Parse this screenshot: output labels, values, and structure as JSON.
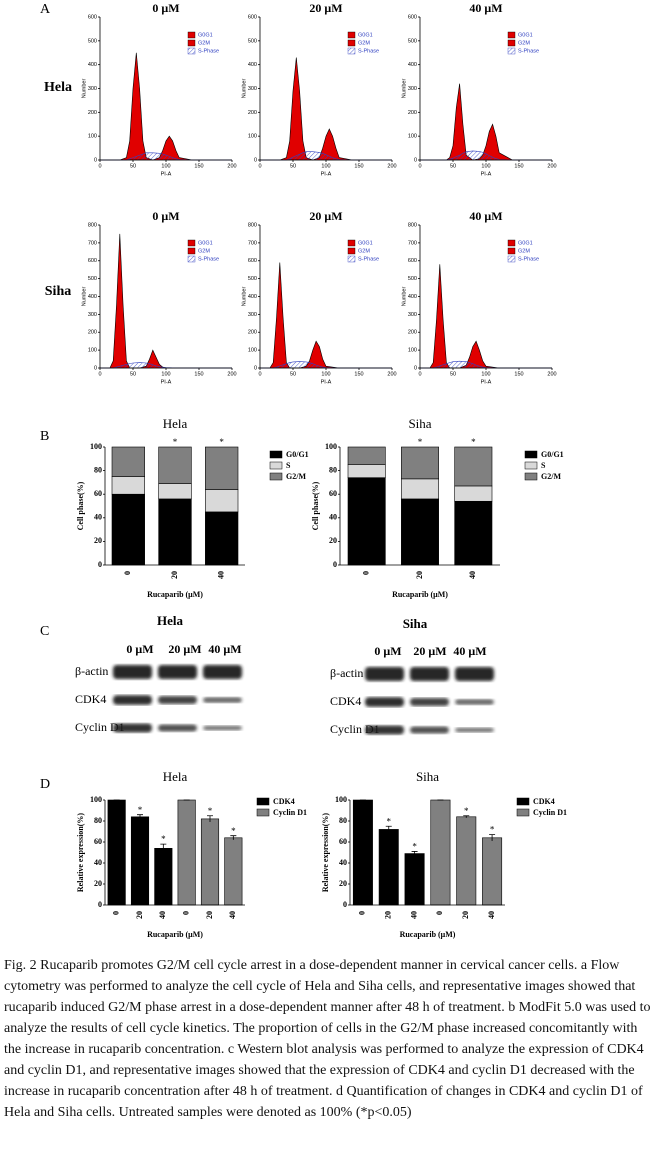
{
  "panels": [
    "A",
    "B",
    "C",
    "D"
  ],
  "panel_a_rows": [
    "Hela",
    "Siha"
  ],
  "chart_data": [
    {
      "type": "area",
      "title": "0 μM",
      "xlabel": "PI-A",
      "ylabel": "Number",
      "legend": "upper-right",
      "x": [
        0,
        30,
        40,
        45,
        50,
        55,
        60,
        65,
        70,
        80,
        90,
        95,
        100,
        105,
        110,
        115,
        120,
        140,
        170,
        200
      ],
      "xlim": [
        0,
        200
      ],
      "xticks": [
        0,
        50,
        100,
        150,
        200
      ],
      "ylim": [
        0,
        600
      ],
      "yticks": [
        0,
        100,
        200,
        300,
        400,
        500,
        600
      ],
      "series": [
        {
          "name": "G0G1",
          "color": "#e00000",
          "values": [
            0,
            0,
            10,
            80,
            300,
            450,
            300,
            80,
            10,
            0,
            0,
            0,
            0,
            0,
            0,
            0,
            0,
            0,
            0,
            0
          ]
        },
        {
          "name": "G2M",
          "color": "#e00000",
          "values": [
            0,
            0,
            0,
            0,
            0,
            0,
            0,
            0,
            0,
            0,
            10,
            40,
            80,
            100,
            80,
            40,
            10,
            0,
            0,
            0
          ]
        },
        {
          "name": "S-Phase",
          "color": "#3040c0",
          "values": [
            0,
            0,
            0,
            5,
            10,
            15,
            20,
            25,
            30,
            30,
            28,
            25,
            20,
            15,
            10,
            5,
            2,
            0,
            0,
            0
          ]
        }
      ]
    },
    {
      "type": "area",
      "title": "20 μM",
      "xlabel": "PI-A",
      "ylabel": "Number",
      "legend": "upper-right",
      "x": [
        0,
        30,
        40,
        45,
        50,
        55,
        60,
        65,
        70,
        80,
        90,
        95,
        100,
        105,
        110,
        115,
        120,
        140,
        170,
        200
      ],
      "xlim": [
        0,
        200
      ],
      "xticks": [
        0,
        50,
        100,
        150,
        200
      ],
      "ylim": [
        0,
        600
      ],
      "yticks": [
        0,
        100,
        200,
        300,
        400,
        500,
        600
      ],
      "series": [
        {
          "name": "G0G1",
          "color": "#e00000",
          "values": [
            0,
            0,
            10,
            80,
            290,
            430,
            290,
            80,
            10,
            0,
            0,
            0,
            0,
            0,
            0,
            0,
            0,
            0,
            0,
            0
          ]
        },
        {
          "name": "G2M",
          "color": "#e00000",
          "values": [
            0,
            0,
            0,
            0,
            0,
            0,
            0,
            0,
            0,
            0,
            10,
            50,
            100,
            130,
            100,
            50,
            10,
            0,
            0,
            0
          ]
        },
        {
          "name": "S-Phase",
          "color": "#3040c0",
          "values": [
            0,
            0,
            0,
            5,
            12,
            18,
            24,
            30,
            35,
            35,
            32,
            28,
            22,
            16,
            10,
            5,
            2,
            0,
            0,
            0
          ]
        }
      ]
    },
    {
      "type": "area",
      "title": "40 μM",
      "xlabel": "PI-A",
      "ylabel": "Number",
      "legend": "upper-right",
      "x": [
        0,
        30,
        40,
        45,
        50,
        55,
        60,
        65,
        70,
        80,
        90,
        95,
        100,
        105,
        110,
        115,
        120,
        140,
        170,
        200
      ],
      "xlim": [
        0,
        200
      ],
      "xticks": [
        0,
        50,
        100,
        150,
        200
      ],
      "ylim": [
        0,
        600
      ],
      "yticks": [
        0,
        100,
        200,
        300,
        400,
        500,
        600
      ],
      "series": [
        {
          "name": "G0G1",
          "color": "#e00000",
          "values": [
            0,
            0,
            0,
            10,
            60,
            220,
            320,
            150,
            20,
            0,
            0,
            0,
            0,
            0,
            0,
            0,
            0,
            0,
            0,
            0
          ]
        },
        {
          "name": "G2M",
          "color": "#e00000",
          "values": [
            0,
            0,
            0,
            0,
            0,
            0,
            0,
            0,
            0,
            0,
            5,
            20,
            60,
            120,
            150,
            100,
            30,
            0,
            0,
            0
          ]
        },
        {
          "name": "S-Phase",
          "color": "#3040c0",
          "values": [
            0,
            0,
            0,
            3,
            8,
            14,
            20,
            28,
            35,
            38,
            36,
            32,
            26,
            18,
            12,
            6,
            2,
            0,
            0,
            0
          ]
        }
      ]
    },
    {
      "type": "area",
      "title": "0 μM",
      "xlabel": "PI-A",
      "ylabel": "Number",
      "legend": "upper-right",
      "x": [
        0,
        15,
        20,
        25,
        30,
        35,
        40,
        45,
        50,
        60,
        70,
        75,
        80,
        85,
        90,
        95,
        100,
        120,
        160,
        200
      ],
      "xlim": [
        0,
        200
      ],
      "xticks": [
        0,
        50,
        100,
        150,
        200
      ],
      "ylim": [
        0,
        800
      ],
      "yticks": [
        0,
        100,
        200,
        300,
        400,
        500,
        600,
        700,
        800
      ],
      "series": [
        {
          "name": "G0G1",
          "color": "#e00000",
          "values": [
            0,
            0,
            40,
            350,
            750,
            350,
            40,
            0,
            0,
            0,
            0,
            0,
            0,
            0,
            0,
            0,
            0,
            0,
            0,
            0
          ]
        },
        {
          "name": "G2M",
          "color": "#e00000",
          "values": [
            0,
            0,
            0,
            0,
            0,
            0,
            0,
            0,
            0,
            0,
            10,
            50,
            100,
            60,
            20,
            5,
            0,
            0,
            0,
            0
          ]
        },
        {
          "name": "S-Phase",
          "color": "#3040c0",
          "values": [
            0,
            0,
            0,
            5,
            10,
            15,
            20,
            25,
            28,
            30,
            28,
            24,
            18,
            12,
            8,
            4,
            2,
            0,
            0,
            0
          ]
        }
      ]
    },
    {
      "type": "area",
      "title": "20 μM",
      "xlabel": "PI-A",
      "ylabel": "Number",
      "legend": "upper-right",
      "x": [
        0,
        15,
        20,
        25,
        30,
        35,
        40,
        45,
        50,
        60,
        70,
        75,
        80,
        85,
        90,
        95,
        100,
        120,
        160,
        200
      ],
      "xlim": [
        0,
        200
      ],
      "xticks": [
        0,
        50,
        100,
        150,
        200
      ],
      "ylim": [
        0,
        800
      ],
      "yticks": [
        0,
        100,
        200,
        300,
        400,
        500,
        600,
        700,
        800
      ],
      "series": [
        {
          "name": "G0G1",
          "color": "#e00000",
          "values": [
            0,
            0,
            30,
            280,
            590,
            280,
            30,
            0,
            0,
            0,
            0,
            0,
            0,
            0,
            0,
            0,
            0,
            0,
            0,
            0
          ]
        },
        {
          "name": "G2M",
          "color": "#e00000",
          "values": [
            0,
            0,
            0,
            0,
            0,
            0,
            0,
            0,
            0,
            0,
            10,
            40,
            100,
            150,
            120,
            50,
            10,
            0,
            0,
            0
          ]
        },
        {
          "name": "S-Phase",
          "color": "#3040c0",
          "values": [
            0,
            0,
            0,
            5,
            12,
            18,
            24,
            30,
            34,
            36,
            34,
            30,
            24,
            16,
            10,
            5,
            2,
            0,
            0,
            0
          ]
        }
      ]
    },
    {
      "type": "area",
      "title": "40 μM",
      "xlabel": "PI-A",
      "ylabel": "Number",
      "legend": "upper-right",
      "x": [
        0,
        15,
        20,
        25,
        30,
        35,
        40,
        45,
        50,
        60,
        70,
        75,
        80,
        85,
        90,
        95,
        100,
        120,
        160,
        200
      ],
      "xlim": [
        0,
        200
      ],
      "xticks": [
        0,
        50,
        100,
        150,
        200
      ],
      "ylim": [
        0,
        800
      ],
      "yticks": [
        0,
        100,
        200,
        300,
        400,
        500,
        600,
        700,
        800
      ],
      "series": [
        {
          "name": "G0G1",
          "color": "#e00000",
          "values": [
            0,
            0,
            30,
            270,
            580,
            270,
            30,
            0,
            0,
            0,
            0,
            0,
            0,
            0,
            0,
            0,
            0,
            0,
            0,
            0
          ]
        },
        {
          "name": "G2M",
          "color": "#e00000",
          "values": [
            0,
            0,
            0,
            0,
            0,
            0,
            0,
            0,
            0,
            0,
            15,
            60,
            120,
            150,
            100,
            40,
            10,
            0,
            0,
            0
          ]
        },
        {
          "name": "S-Phase",
          "color": "#3040c0",
          "values": [
            0,
            0,
            0,
            5,
            12,
            18,
            24,
            30,
            35,
            38,
            35,
            30,
            24,
            16,
            10,
            5,
            2,
            0,
            0,
            0
          ]
        }
      ]
    },
    {
      "type": "stacked-bar",
      "title": "Hela",
      "xlabel": "Rucaparib (μM)",
      "ylabel": "Cell phase(%)",
      "legend": "outside-right",
      "categories": [
        "0",
        "20",
        "40"
      ],
      "ylim": [
        0,
        100
      ],
      "yticks": [
        0,
        20,
        40,
        60,
        80,
        100
      ],
      "significance": [
        null,
        "*",
        "*"
      ],
      "series": [
        {
          "name": "G0/G1",
          "color": "#000000",
          "values": [
            60,
            56,
            45
          ]
        },
        {
          "name": "S",
          "color": "#d9d9d9",
          "values": [
            15,
            13,
            19
          ]
        },
        {
          "name": "G2/M",
          "color": "#808080",
          "values": [
            25,
            31,
            36
          ]
        }
      ]
    },
    {
      "type": "stacked-bar",
      "title": "Siha",
      "xlabel": "Rucaparib (μM)",
      "ylabel": "Cell phase(%)",
      "legend": "outside-right",
      "categories": [
        "0",
        "20",
        "40"
      ],
      "ylim": [
        0,
        100
      ],
      "yticks": [
        0,
        20,
        40,
        60,
        80,
        100
      ],
      "significance": [
        null,
        "*",
        "*"
      ],
      "series": [
        {
          "name": "G0/G1",
          "color": "#000000",
          "values": [
            74,
            56,
            54
          ]
        },
        {
          "name": "S",
          "color": "#d9d9d9",
          "values": [
            11,
            17,
            13
          ]
        },
        {
          "name": "G2/M",
          "color": "#808080",
          "values": [
            15,
            27,
            33
          ]
        }
      ]
    },
    {
      "type": "bar",
      "title": "Hela",
      "xlabel": "Rucaparib (μM)",
      "ylabel": "Relative expression(%)",
      "legend": "outside-right",
      "categories": [
        "0",
        "20",
        "40",
        "0",
        "20",
        "40"
      ],
      "ylim": [
        0,
        100
      ],
      "yticks": [
        0,
        20,
        40,
        60,
        80,
        100
      ],
      "significance": [
        null,
        "*",
        "*",
        null,
        "*",
        "*"
      ],
      "series": [
        {
          "name": "CDK4",
          "color": "#000000",
          "values": [
            100,
            84,
            54,
            null,
            null,
            null
          ],
          "errors": [
            0,
            2,
            4,
            null,
            null,
            null
          ]
        },
        {
          "name": "Cyclin D1",
          "color": "#808080",
          "values": [
            null,
            null,
            null,
            100,
            82,
            64
          ],
          "errors": [
            null,
            null,
            null,
            0,
            3,
            2
          ]
        }
      ]
    },
    {
      "type": "bar",
      "title": "Siha",
      "xlabel": "Rucaparib (μM)",
      "ylabel": "Relative expression(%)",
      "legend": "outside-right",
      "categories": [
        "0",
        "20",
        "40",
        "0",
        "20",
        "40"
      ],
      "ylim": [
        0,
        100
      ],
      "yticks": [
        0,
        20,
        40,
        60,
        80,
        100
      ],
      "significance": [
        null,
        "*",
        "*",
        null,
        "*",
        "*"
      ],
      "series": [
        {
          "name": "CDK4",
          "color": "#000000",
          "values": [
            100,
            72,
            49,
            null,
            null,
            null
          ],
          "errors": [
            0,
            3,
            2,
            null,
            null,
            null
          ]
        },
        {
          "name": "Cyclin D1",
          "color": "#808080",
          "values": [
            null,
            null,
            null,
            100,
            84,
            64
          ],
          "errors": [
            null,
            null,
            null,
            0,
            1,
            3
          ]
        }
      ]
    }
  ],
  "blots": [
    {
      "title": "Hela",
      "lanes": [
        "0 μM",
        "20 μM",
        "40 μM"
      ],
      "rows": [
        "β-actin",
        "CDK4",
        "Cyclin D1"
      ]
    },
    {
      "title": "Siha",
      "lanes": [
        "0 μM",
        "20 μM",
        "40 μM"
      ],
      "rows": [
        "β-actin",
        "CDK4",
        "Cyclin D1"
      ]
    }
  ],
  "caption": "Fig. 2 Rucaparib promotes G2/M cell cycle arrest in a dose-dependent manner in cervical cancer cells. a Flow cytometry was performed to analyze the cell cycle of Hela and Siha cells, and representative images showed that rucaparib induced G2/M phase arrest in a dose-dependent manner after 48 h of treatment. b ModFit 5.0 was used to analyze the results of cell cycle kinetics. The proportion of cells in the G2/M phase increased concomitantly with the increase in rucaparib concentration. c Western blot analysis was performed to analyze the expression of CDK4 and cyclin D1, and representative images showed that the expression of CDK4 and cyclin D1 decreased with the increase in rucaparib concentration after 48 h of treatment. d Quantification of changes in CDK4 and cyclin D1 of Hela and Siha cells. Untreated samples were denoted as 100% (*p<0.05)"
}
